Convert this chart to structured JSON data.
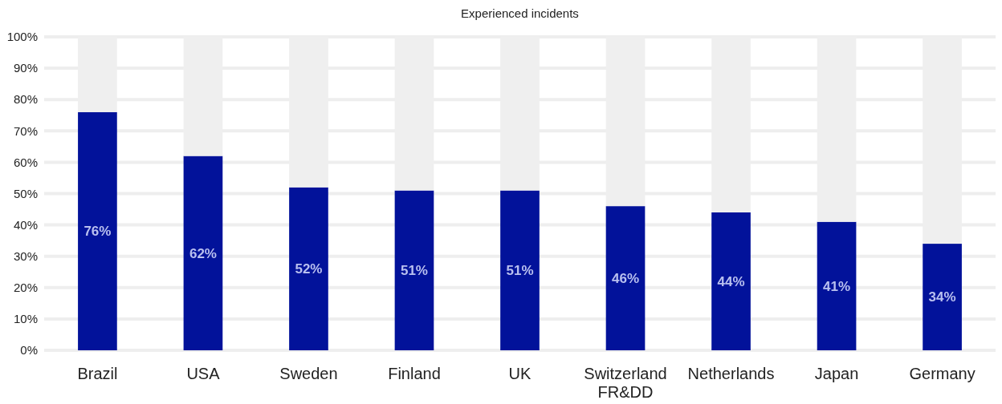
{
  "chart_data": {
    "type": "bar",
    "title": "Experienced incidents",
    "categories": [
      "Brazil",
      "USA",
      "Sweden",
      "Finland",
      "UK",
      "Switzerland FR&DD",
      "Netherlands",
      "Japan",
      "Germany"
    ],
    "stacked": true,
    "series": [
      {
        "color": "#02129a",
        "values": [
          76,
          62,
          52,
          51,
          51,
          46,
          44,
          41,
          34
        ],
        "value_labels": [
          "76%",
          "62%",
          "52%",
          "51%",
          "51%",
          "46%",
          "44%",
          "41%",
          "34%"
        ]
      },
      {
        "color": "#efefef",
        "values": [
          24,
          38,
          48,
          49,
          49,
          54,
          56,
          59,
          66
        ]
      }
    ],
    "ylim": [
      0,
      100
    ],
    "yticks": [
      {
        "value": 0,
        "label": "0%"
      },
      {
        "value": 10,
        "label": "10%"
      },
      {
        "value": 20,
        "label": "20%"
      },
      {
        "value": 30,
        "label": "30%"
      },
      {
        "value": 40,
        "label": "40%"
      },
      {
        "value": 50,
        "label": "50%"
      },
      {
        "value": 60,
        "label": "60%"
      },
      {
        "value": 70,
        "label": "70%"
      },
      {
        "value": 80,
        "label": "80%"
      },
      {
        "value": 90,
        "label": "90%"
      },
      {
        "value": 100,
        "label": "100%"
      }
    ],
    "grid": "y"
  }
}
